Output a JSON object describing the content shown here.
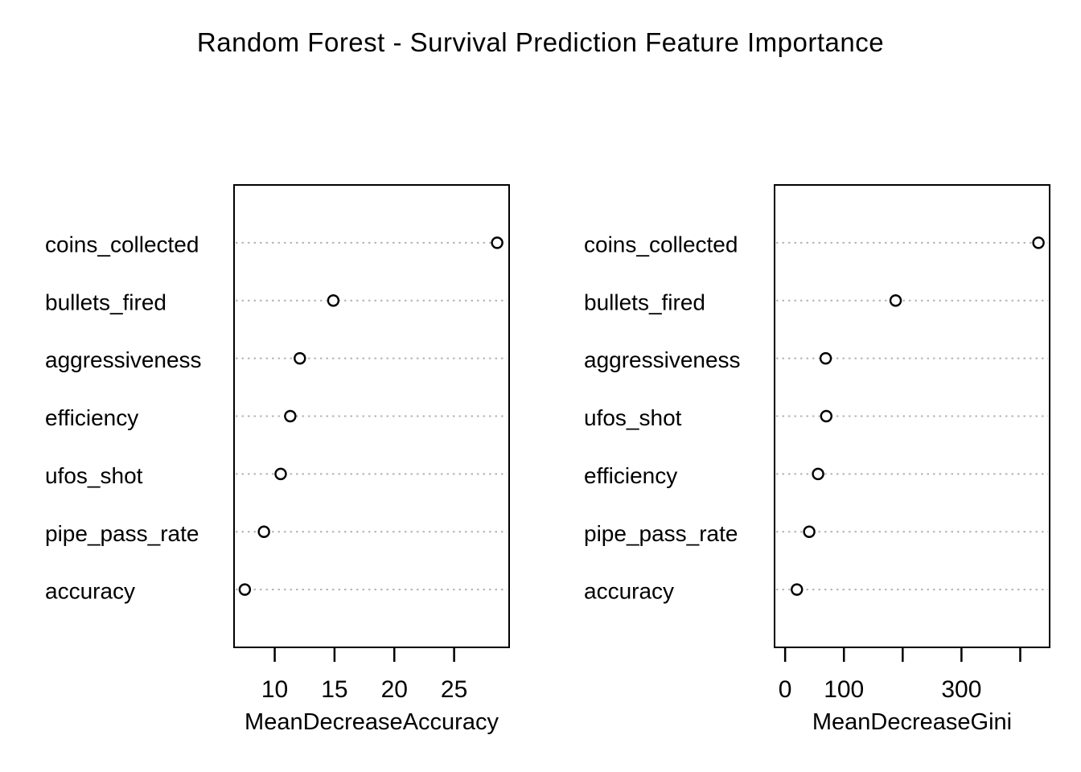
{
  "title": "Random Forest - Survival Prediction Feature Importance",
  "colors": {
    "background": "#ffffff",
    "text": "#000000",
    "grid": "#b4b4b4",
    "box_stroke": "#000000",
    "point_stroke": "#000000",
    "point_fill": "#ffffff"
  },
  "chart_data": [
    {
      "type": "scatter",
      "subtype": "dotchart",
      "panel": "left",
      "xlabel": "MeanDecreaseAccuracy",
      "categories": [
        "coins_collected",
        "bullets_fired",
        "aggressiveness",
        "efficiency",
        "ufos_shot",
        "pipe_pass_rate",
        "accuracy"
      ],
      "values": [
        28.6,
        14.9,
        12.1,
        11.3,
        10.5,
        9.1,
        7.5
      ],
      "xlim": [
        6.6,
        29.6
      ],
      "xticks": [
        10,
        15,
        20,
        25
      ],
      "xtick_labels": [
        "10",
        "15",
        "20",
        "25"
      ],
      "grid": "horizontal dotted",
      "legend": "none"
    },
    {
      "type": "scatter",
      "subtype": "dotchart",
      "panel": "right",
      "xlabel": "MeanDecreaseGini",
      "categories": [
        "coins_collected",
        "bullets_fired",
        "aggressiveness",
        "ufos_shot",
        "efficiency",
        "pipe_pass_rate",
        "accuracy"
      ],
      "values": [
        431,
        188,
        69,
        70,
        56,
        41,
        20
      ],
      "xlim": [
        -18,
        450
      ],
      "xticks": [
        0,
        100,
        200,
        300,
        400
      ],
      "xtick_labels": [
        "0",
        "100",
        "",
        "300",
        ""
      ],
      "grid": "horizontal dotted",
      "legend": "none"
    }
  ]
}
